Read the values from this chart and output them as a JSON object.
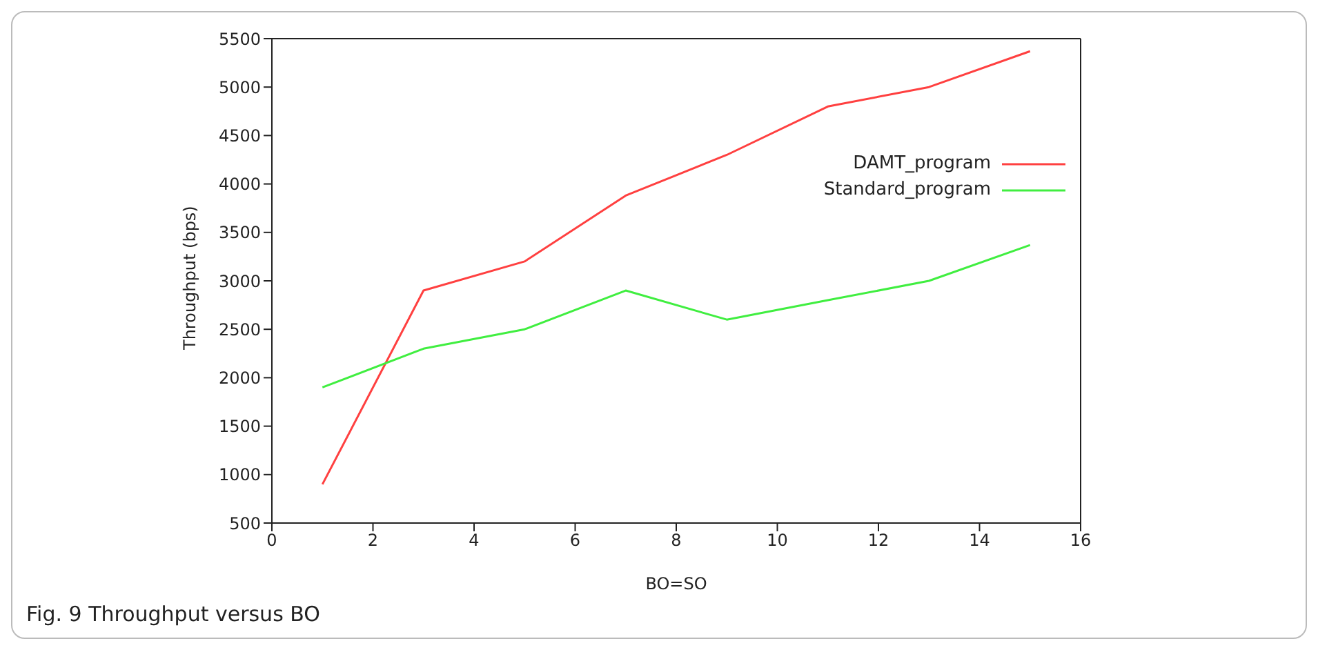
{
  "chart_data": {
    "type": "line",
    "xlabel": "BO=SO",
    "ylabel": "Throughput (bps)",
    "annotations": [
      "Fig. 9  Throughput versus BO"
    ],
    "x": [
      1,
      3,
      5,
      7,
      9,
      11,
      13,
      15
    ],
    "series": [
      {
        "name": "DAMT_program",
        "color": "#ff4040",
        "values": [
          900,
          2900,
          3200,
          3880,
          4300,
          4800,
          5000,
          5370
        ]
      },
      {
        "name": "Standard_program",
        "color": "#40ee40",
        "values": [
          1900,
          2300,
          2500,
          2900,
          2600,
          2800,
          3000,
          3370
        ]
      }
    ],
    "xlim": [
      0,
      16
    ],
    "xticks": [
      0,
      2,
      4,
      6,
      8,
      10,
      12,
      14,
      16
    ],
    "ylim": [
      500,
      5500
    ],
    "yticks": [
      500,
      1000,
      1500,
      2000,
      2500,
      3000,
      3500,
      4000,
      4500,
      5000,
      5500
    ],
    "grid": false,
    "legend": "top right",
    "marker": "none",
    "line_style": "solid"
  }
}
